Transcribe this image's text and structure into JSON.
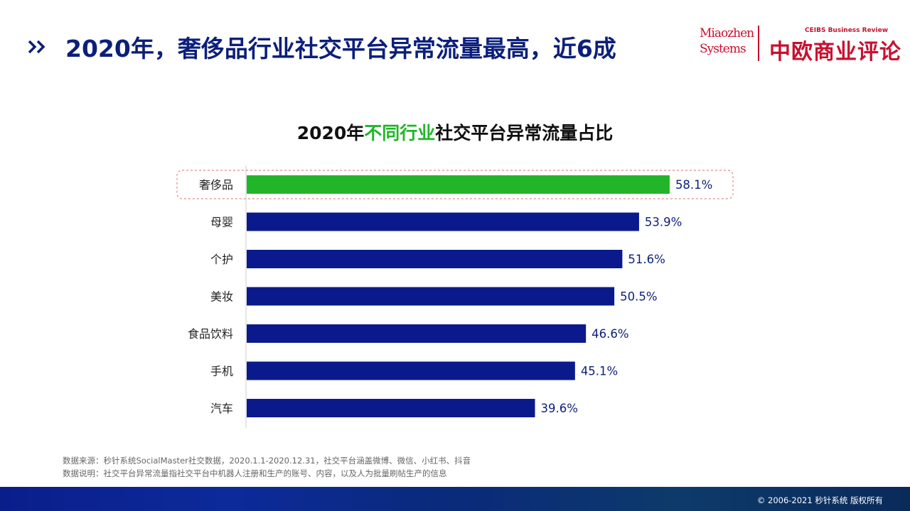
{
  "slide": {
    "title": "2020年，奢侈品行业社交平台异常流量最高，近6成"
  },
  "logos": {
    "miaozhen_line1": "Miaozhen",
    "miaozhen_line2": "Systems",
    "ceibs_en": "CEIBS Business Review",
    "ceibs_cn": "中欧商业评论"
  },
  "chart_data": {
    "type": "bar",
    "orientation": "horizontal",
    "title_prefix": "2020年",
    "title_highlight": "不同行业",
    "title_suffix": "社交平台异常流量占比",
    "categories": [
      "奢侈品",
      "母婴",
      "个护",
      "美妆",
      "食品饮料",
      "手机",
      "汽车"
    ],
    "values": [
      58.1,
      53.9,
      51.6,
      50.5,
      46.6,
      45.1,
      39.6
    ],
    "labels": [
      "58.1%",
      "53.9%",
      "51.6%",
      "50.5%",
      "46.6%",
      "45.1%",
      "39.6%"
    ],
    "highlight_index": 0,
    "colors": {
      "bar": "#0a1a8c",
      "highlight": "#22b52a",
      "highlight_box": "#e58a8a",
      "axis": "#cccccc",
      "label": "#0b1f7a"
    },
    "xlim": [
      0,
      100
    ],
    "grid": false,
    "legend": "none"
  },
  "notes": {
    "source": "数据来源：秒针系统SocialMaster社交数据，2020.1.1-2020.12.31，社交平台涵盖微博、微信、小红书、抖音",
    "explanation": "数据说明：社交平台异常流量指社交平台中机器人注册和生产的账号、内容，以及人为批量刷帖生产的信息"
  },
  "footer": {
    "copyright": "© 2006-2021 秒针系统 版权所有"
  }
}
